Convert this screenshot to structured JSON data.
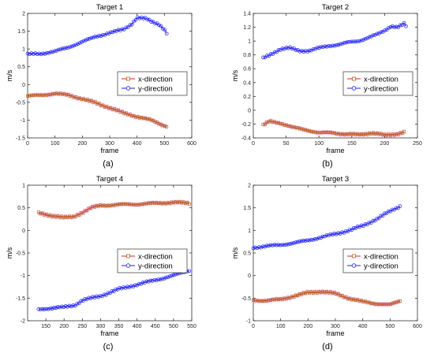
{
  "figure": {
    "panel_labels": [
      "(a)",
      "(b)",
      "(c)",
      "(d)"
    ],
    "colors": {
      "x_line": "#d62728",
      "x_marker": "#b5651d",
      "x_glow": "#ff66dd",
      "y_line": "#1f1fe0",
      "y_marker": "#1a1aff",
      "axis": "#333333"
    }
  },
  "chart_data": [
    {
      "type": "line",
      "title": "Target 1",
      "xlabel": "frame",
      "ylabel": "m/s",
      "xlim": [
        0,
        600
      ],
      "ylim": [
        -1.5,
        2
      ],
      "xticks": [
        "0",
        "100",
        "200",
        "300",
        "400",
        "500",
        "600"
      ],
      "yticks": [
        "-1.5",
        "-1",
        "-0.5",
        "0",
        "0.5",
        "1",
        "1.5",
        "2"
      ],
      "legend": {
        "placement": "center-right",
        "entries": [
          "x-direction",
          "y-direction"
        ]
      },
      "series": [
        {
          "name": "x-direction",
          "color": "#d62728",
          "x": [
            0,
            50,
            100,
            150,
            200,
            250,
            300,
            350,
            400,
            450,
            500,
            510
          ],
          "y": [
            -0.32,
            -0.3,
            -0.25,
            -0.3,
            -0.4,
            -0.52,
            -0.65,
            -0.8,
            -0.9,
            -1.0,
            -1.15,
            -1.18
          ]
        },
        {
          "name": "y-direction",
          "color": "#1f1fe0",
          "x": [
            0,
            50,
            100,
            150,
            200,
            250,
            300,
            350,
            380,
            400,
            430,
            460,
            480,
            500,
            510
          ],
          "y": [
            0.85,
            0.87,
            0.93,
            1.05,
            1.2,
            1.35,
            1.45,
            1.55,
            1.7,
            1.88,
            1.85,
            1.75,
            1.7,
            1.55,
            1.42
          ]
        }
      ]
    },
    {
      "type": "line",
      "title": "Target 2",
      "xlabel": "frame",
      "ylabel": "m/s",
      "xlim": [
        0,
        250
      ],
      "ylim": [
        -0.4,
        1.4
      ],
      "xticks": [
        "0",
        "50",
        "100",
        "150",
        "200",
        "250"
      ],
      "yticks": [
        "-0.4",
        "-0.2",
        "0",
        "0.2",
        "0.4",
        "0.6",
        "0.8",
        "1",
        "1.2",
        "1.4"
      ],
      "legend": {
        "placement": "center-right",
        "entries": [
          "x-direction",
          "y-direction"
        ]
      },
      "series": [
        {
          "name": "x-direction",
          "color": "#d62728",
          "x": [
            15,
            25,
            40,
            60,
            80,
            100,
            120,
            140,
            160,
            180,
            200,
            220,
            232
          ],
          "y": [
            -0.22,
            -0.16,
            -0.18,
            -0.25,
            -0.28,
            -0.33,
            -0.32,
            -0.35,
            -0.35,
            -0.33,
            -0.36,
            -0.34,
            -0.31
          ]
        },
        {
          "name": "y-direction",
          "color": "#1f1fe0",
          "x": [
            15,
            25,
            40,
            55,
            70,
            85,
            100,
            115,
            130,
            145,
            160,
            175,
            190,
            200,
            210,
            220,
            230,
            235
          ],
          "y": [
            0.75,
            0.8,
            0.88,
            0.9,
            0.86,
            0.86,
            0.9,
            0.93,
            0.95,
            0.98,
            1.0,
            1.05,
            1.1,
            1.15,
            1.22,
            1.2,
            1.25,
            1.18
          ]
        }
      ]
    },
    {
      "type": "line",
      "title": "Target 4",
      "xlabel": "frame",
      "ylabel": "m/s",
      "xlim": [
        100,
        550
      ],
      "ylim": [
        -2,
        1
      ],
      "xticks": [
        "150",
        "200",
        "250",
        "300",
        "350",
        "400",
        "450",
        "500",
        "550"
      ],
      "yticks": [
        "-2",
        "-1.5",
        "-1",
        "-0.5",
        "0",
        "0.5",
        "1"
      ],
      "legend": {
        "placement": "center-right",
        "entries": [
          "x-direction",
          "y-direction"
        ]
      },
      "series": [
        {
          "name": "x-direction",
          "color": "#d62728",
          "x": [
            130,
            150,
            175,
            200,
            225,
            250,
            275,
            300,
            350,
            400,
            450,
            500,
            545
          ],
          "y": [
            0.38,
            0.35,
            0.32,
            0.28,
            0.3,
            0.4,
            0.5,
            0.55,
            0.57,
            0.58,
            0.6,
            0.62,
            0.6
          ]
        },
        {
          "name": "y-direction",
          "color": "#1f1fe0",
          "x": [
            130,
            150,
            200,
            230,
            250,
            300,
            350,
            400,
            450,
            500,
            545
          ],
          "y": [
            -1.75,
            -1.73,
            -1.7,
            -1.65,
            -1.55,
            -1.45,
            -1.3,
            -1.2,
            -1.1,
            -1.0,
            -0.88
          ]
        }
      ]
    },
    {
      "type": "line",
      "title": "Target 3",
      "xlabel": "frame",
      "ylabel": "m/s",
      "xlim": [
        0,
        600
      ],
      "ylim": [
        -1,
        2
      ],
      "xticks": [
        "0",
        "100",
        "200",
        "300",
        "400",
        "500",
        "600"
      ],
      "yticks": [
        "-1",
        "-0.5",
        "0",
        "0.5",
        "1",
        "1.5",
        "2"
      ],
      "legend": {
        "placement": "center-right",
        "entries": [
          "x-direction",
          "y-direction"
        ]
      },
      "series": [
        {
          "name": "x-direction",
          "color": "#d62728",
          "x": [
            0,
            50,
            100,
            150,
            200,
            250,
            300,
            350,
            400,
            450,
            500,
            540
          ],
          "y": [
            -0.55,
            -0.55,
            -0.53,
            -0.45,
            -0.38,
            -0.35,
            -0.4,
            -0.5,
            -0.58,
            -0.62,
            -0.65,
            -0.55
          ]
        },
        {
          "name": "y-direction",
          "color": "#1f1fe0",
          "x": [
            0,
            50,
            100,
            150,
            200,
            250,
            300,
            350,
            400,
            450,
            500,
            540
          ],
          "y": [
            0.62,
            0.65,
            0.68,
            0.72,
            0.78,
            0.85,
            0.92,
            1.0,
            1.1,
            1.25,
            1.42,
            1.55
          ]
        }
      ]
    }
  ]
}
